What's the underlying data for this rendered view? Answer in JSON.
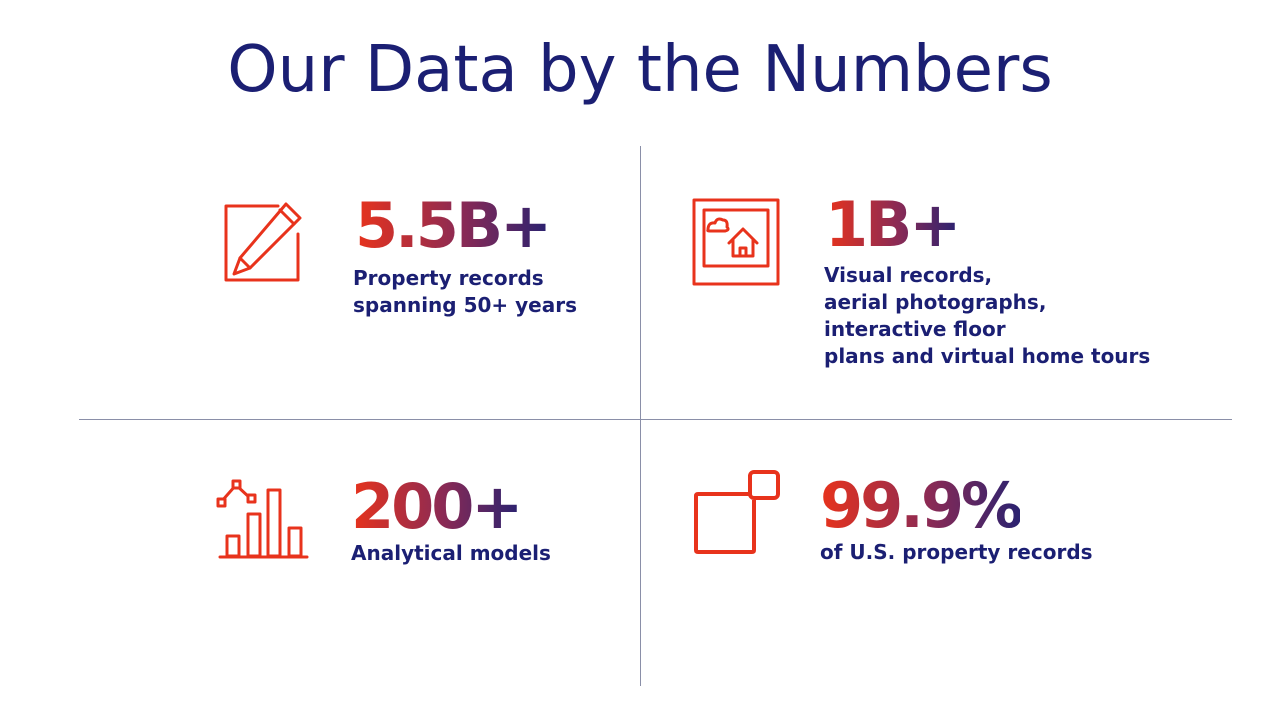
{
  "title": "Our Data by the Numbers",
  "colors": {
    "title": "#1b1f73",
    "icon": "#e8331c",
    "gradient_start": "#e8331c",
    "gradient_end": "#2a2270",
    "divider": "#8a8fa8"
  },
  "stats": [
    {
      "icon": "edit-pencil-icon",
      "value": "5.5B+",
      "lines": [
        "Property records",
        "spanning 50+ years"
      ]
    },
    {
      "icon": "photo-house-icon",
      "value": "1B+",
      "lines": [
        "Visual records,",
        "aerial photographs,",
        "interactive floor",
        "plans and virtual home tours"
      ]
    },
    {
      "icon": "bar-chart-icon",
      "value": "200+",
      "lines": [
        "Analytical models"
      ]
    },
    {
      "icon": "squares-icon",
      "value": "99.9%",
      "lines": [
        "of U.S. property records"
      ]
    }
  ]
}
